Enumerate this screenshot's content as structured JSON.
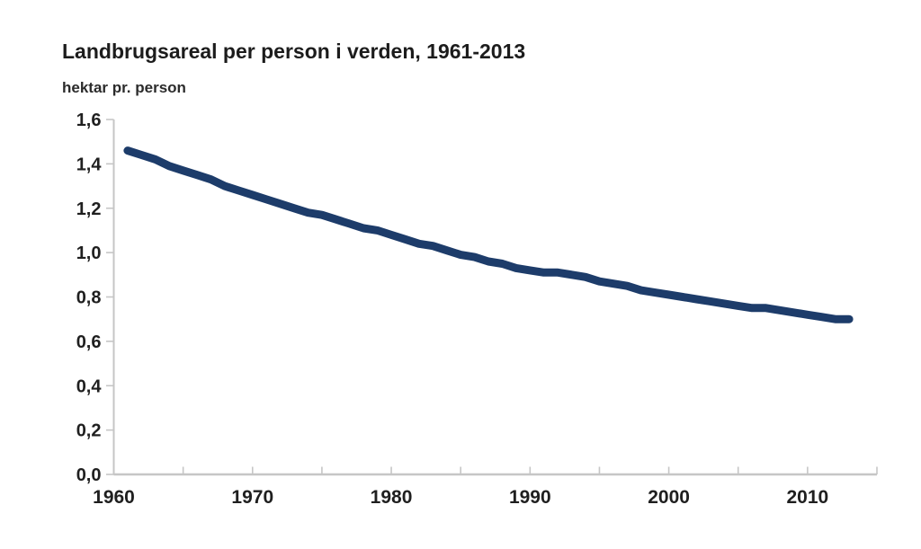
{
  "page": {
    "background": "#ffffff"
  },
  "header": {
    "title": "Landbrugsareal per person i verden, 1961-2013",
    "subtitle": "hektar pr. person"
  },
  "chart_data": {
    "type": "line",
    "title": "Landbrugsareal per person i verden, 1961-2013",
    "subtitle": "hektar pr. person",
    "xlabel": "",
    "ylabel": "hektar pr. person",
    "grid": false,
    "legend": "none",
    "xlim": [
      1960,
      2015
    ],
    "ylim": [
      0,
      1.6
    ],
    "x_major_ticks": [
      1960,
      1970,
      1980,
      1990,
      2000,
      2010
    ],
    "x_tick_labels": [
      "1960",
      "1970",
      "1980",
      "1990",
      "2000",
      "2010"
    ],
    "x_minor_ticks": [
      1965,
      1970,
      1975,
      1980,
      1985,
      1990,
      1995,
      2000,
      2005,
      2010,
      2015
    ],
    "y_ticks": [
      0.0,
      0.2,
      0.4,
      0.6,
      0.8,
      1.0,
      1.2,
      1.4,
      1.6
    ],
    "y_tick_labels": [
      "0,0",
      "0,2",
      "0,4",
      "0,6",
      "0,8",
      "1,0",
      "1,2",
      "1,4",
      "1,6"
    ],
    "axis_color": "#c6c6c6",
    "tick_color": "#c6c6c6",
    "text_color": "#1f1f1f",
    "x": [
      1961,
      1962,
      1963,
      1964,
      1965,
      1966,
      1967,
      1968,
      1969,
      1970,
      1971,
      1972,
      1973,
      1974,
      1975,
      1976,
      1977,
      1978,
      1979,
      1980,
      1981,
      1982,
      1983,
      1984,
      1985,
      1986,
      1987,
      1988,
      1989,
      1990,
      1991,
      1992,
      1993,
      1994,
      1995,
      1996,
      1997,
      1998,
      1999,
      2000,
      2001,
      2002,
      2003,
      2004,
      2005,
      2006,
      2007,
      2008,
      2009,
      2010,
      2011,
      2012,
      2013
    ],
    "series": [
      {
        "name": "Landbrugsareal per person",
        "color": "#1d3c6a",
        "values": [
          1.46,
          1.44,
          1.42,
          1.39,
          1.37,
          1.35,
          1.33,
          1.3,
          1.28,
          1.26,
          1.24,
          1.22,
          1.2,
          1.18,
          1.17,
          1.15,
          1.13,
          1.11,
          1.1,
          1.08,
          1.06,
          1.04,
          1.03,
          1.01,
          0.99,
          0.98,
          0.96,
          0.95,
          0.93,
          0.92,
          0.91,
          0.91,
          0.9,
          0.89,
          0.87,
          0.86,
          0.85,
          0.83,
          0.82,
          0.81,
          0.8,
          0.79,
          0.78,
          0.77,
          0.76,
          0.75,
          0.75,
          0.74,
          0.73,
          0.72,
          0.71,
          0.7,
          0.7
        ]
      }
    ]
  }
}
